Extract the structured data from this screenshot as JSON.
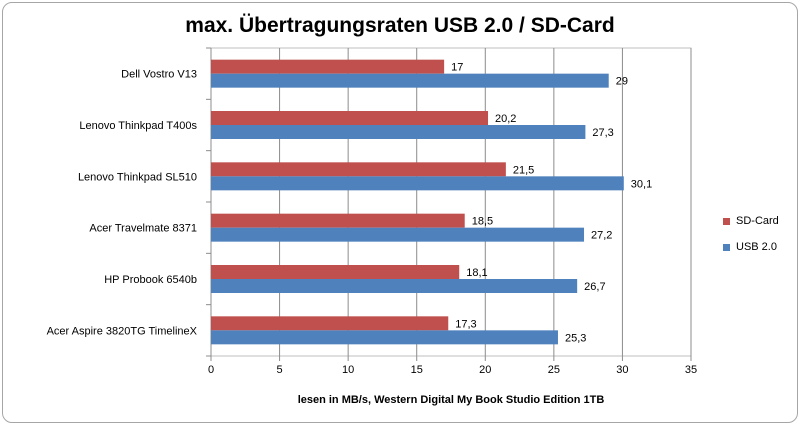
{
  "chart_data": {
    "type": "bar",
    "orientation": "horizontal",
    "title": "max. Übertragungsraten USB 2.0  / SD-Card",
    "xlabel": "lesen in MB/s, Western Digital My Book Studio Edition 1TB",
    "ylabel": "",
    "categories": [
      "Dell Vostro  V13",
      "Lenovo Thinkpad T400s",
      "Lenovo Thinkpad SL510",
      "Acer Travelmate 8371",
      "HP Probook 6540b",
      "Acer Aspire 3820TG TimelineX"
    ],
    "series": [
      {
        "name": "SD-Card",
        "color": "#c0504d",
        "values": [
          17,
          20.2,
          21.5,
          18.5,
          18.1,
          17.3
        ],
        "labels": [
          "17",
          "20,2",
          "21,5",
          "18,5",
          "18,1",
          "17,3"
        ]
      },
      {
        "name": "USB 2.0",
        "color": "#4f81bd",
        "values": [
          29,
          27.3,
          30.1,
          27.2,
          26.7,
          25.3
        ],
        "labels": [
          "29",
          "27,3",
          "30,1",
          "27,2",
          "26,7",
          "25,3"
        ]
      }
    ],
    "xlim": [
      0,
      35
    ],
    "xticks": [
      "0",
      "5",
      "10",
      "15",
      "20",
      "25",
      "30",
      "35"
    ],
    "grid": true,
    "legend": "right"
  }
}
